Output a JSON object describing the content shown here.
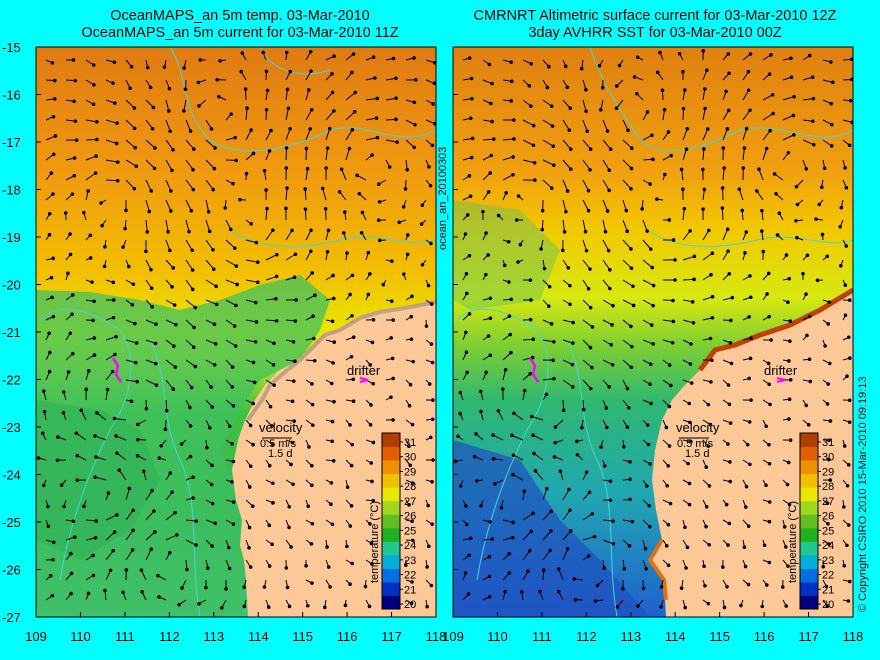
{
  "titles": {
    "left": [
      "OceanMAPS_an 5m temp. 03-Mar-2010",
      "OceanMAPS_an 5m current for 03-Mar-2010 11Z"
    ],
    "right": [
      "CMRNRT Altimetric surface current for 03-Mar-2010 12Z",
      "3day AVHRR SST for 03-Mar-2010 00Z"
    ]
  },
  "axes": {
    "lat_ticks": [
      "-15",
      "-16",
      "-17",
      "-18",
      "-19",
      "-20",
      "-21",
      "-22",
      "-23",
      "-24",
      "-25",
      "-26",
      "-27"
    ],
    "lon_ticks": [
      "109",
      "110",
      "111",
      "112",
      "113",
      "114",
      "115",
      "116",
      "117",
      "118"
    ],
    "lat_range": [
      -27,
      -15
    ],
    "lon_range": [
      109,
      118
    ]
  },
  "colorbar": {
    "label": "temperature (°C)",
    "ticks": [
      "31",
      "30",
      "29",
      "28",
      "27",
      "26",
      "25",
      "24",
      "23",
      "22",
      "21",
      "20"
    ],
    "colors": [
      "#000080",
      "#0030c0",
      "#0070e0",
      "#00b0d8",
      "#20c890",
      "#20b020",
      "#60c020",
      "#a0d820",
      "#e8e800",
      "#f0c000",
      "#f09000",
      "#e06000",
      "#b04000"
    ]
  },
  "legend": {
    "velocity_label": "velocity",
    "speed_label": "0.5 m/s",
    "duration_label": "1.5 d",
    "drifter_label": "drifter"
  },
  "side_text": {
    "product": "ocean_an_20100303",
    "copyright": "© Copyright CSIRO 2010   15-Mar-2010 09:19:13"
  },
  "colors": {
    "background": "#00ffff",
    "land": "#fcc898",
    "bathymetry": "#40d8d8",
    "drifter": "#ff00ff"
  }
}
